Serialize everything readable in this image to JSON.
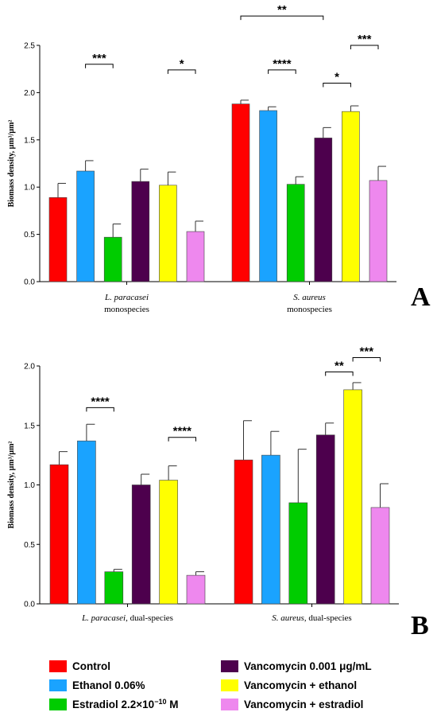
{
  "colors": [
    "#ff0000",
    "#1aa3ff",
    "#00cc00",
    "#4d004d",
    "#ffff00",
    "#ee88ee"
  ],
  "legend": [
    {
      "label": "Control",
      "color": "#ff0000"
    },
    {
      "label": "Ethanol 0.06%",
      "color": "#1aa3ff"
    },
    {
      "label": "Estradiol 2.2×10",
      "sup": "−10",
      "suffix": " M",
      "color": "#00cc00"
    },
    {
      "label": "Vancomycin 0.001 μg/mL",
      "color": "#4d004d"
    },
    {
      "label": "Vancomycin + ethanol",
      "color": "#ffff00"
    },
    {
      "label": "Vancomycin + estradiol",
      "color": "#ee88ee"
    }
  ],
  "chart_data": [
    {
      "panel": "A",
      "type": "bar",
      "ylabel": "Biomass density, μm³/μm²",
      "ylim": [
        0,
        2.5
      ],
      "yticks": [
        "0.0",
        "0.5",
        "1.0",
        "1.5",
        "2.0",
        "2.5"
      ],
      "groups": [
        {
          "label_italic": "L. paracasei",
          "label_rest": "",
          "label_line2": "monospecies",
          "values": [
            0.89,
            1.17,
            0.47,
            1.06,
            1.02,
            0.53
          ],
          "errors": [
            0.15,
            0.11,
            0.14,
            0.13,
            0.14,
            0.11
          ]
        },
        {
          "label_italic": "S. aureus",
          "label_rest": "",
          "label_line2": "monospecies",
          "values": [
            1.88,
            1.81,
            1.03,
            1.52,
            1.8,
            1.07
          ],
          "errors": [
            0.04,
            0.04,
            0.08,
            0.11,
            0.06,
            0.15
          ]
        }
      ],
      "significance": [
        {
          "group": 0,
          "from": 1,
          "to": 2,
          "y": 2.3,
          "label": "***"
        },
        {
          "group": 0,
          "from": 4,
          "to": 5,
          "y": 2.24,
          "label": "*"
        },
        {
          "group": 1,
          "from": 0,
          "to": 3,
          "y": 2.81,
          "label": "**"
        },
        {
          "group": 1,
          "from": 1,
          "to": 2,
          "y": 2.24,
          "label": "****"
        },
        {
          "group": 1,
          "from": 3,
          "to": 4,
          "y": 2.1,
          "label": "*"
        },
        {
          "group": 1,
          "from": 4,
          "to": 5,
          "y": 2.5,
          "label": "***"
        }
      ]
    },
    {
      "panel": "B",
      "type": "bar",
      "ylabel": "Biomass density, μm³/μm²",
      "ylim": [
        0,
        2.0
      ],
      "yticks": [
        "0.0",
        "0.5",
        "1.0",
        "1.5",
        "2.0"
      ],
      "groups": [
        {
          "label_italic": "L. paracasei",
          "label_rest": ", dual-species",
          "label_line2": "",
          "values": [
            1.17,
            1.37,
            0.27,
            1.0,
            1.04,
            0.24
          ],
          "errors": [
            0.11,
            0.14,
            0.02,
            0.09,
            0.12,
            0.03
          ]
        },
        {
          "label_italic": "S. aureus",
          "label_rest": ", dual-species",
          "label_line2": "",
          "values": [
            1.21,
            1.25,
            0.85,
            1.42,
            1.8,
            0.81
          ],
          "errors": [
            0.33,
            0.2,
            0.45,
            0.1,
            0.06,
            0.2
          ]
        }
      ],
      "significance": [
        {
          "group": 0,
          "from": 1,
          "to": 2,
          "y": 1.65,
          "label": "****"
        },
        {
          "group": 0,
          "from": 4,
          "to": 5,
          "y": 1.4,
          "label": "****"
        },
        {
          "group": 1,
          "from": 3,
          "to": 4,
          "y": 1.95,
          "label": "**"
        },
        {
          "group": 1,
          "from": 4,
          "to": 5,
          "y": 2.07,
          "label": "***"
        }
      ]
    }
  ]
}
